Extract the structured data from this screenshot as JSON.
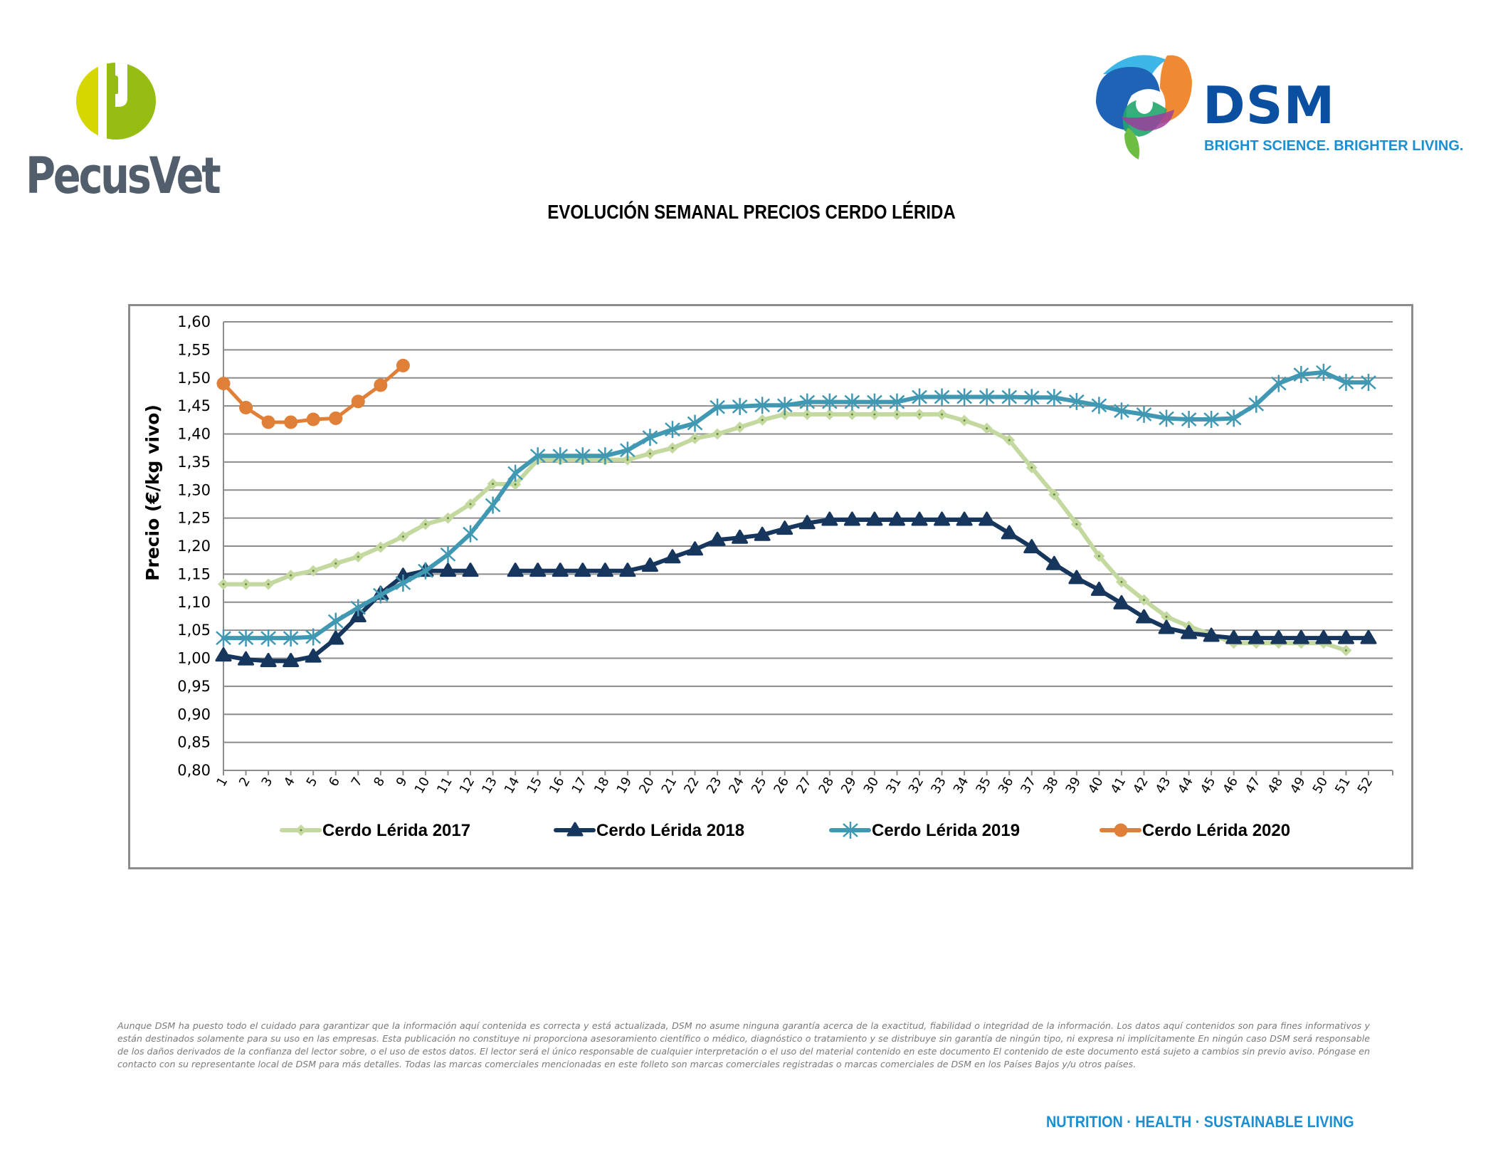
{
  "logos": {
    "left_brand": "PecusVet",
    "right_brand": "DSM",
    "right_tagline": "BRIGHT SCIENCE. BRIGHTER LIVING."
  },
  "title": "EVOLUCIÓN SEMANAL PRECIOS CERDO LÉRIDA",
  "colors": {
    "series_2017": "#c4d99f",
    "series_2018": "#17365d",
    "series_2019": "#4198b2",
    "series_2020": "#e07f38",
    "pecus_green_light": "#d4d800",
    "pecus_green": "#96be12",
    "pecus_gray": "#525e6c",
    "dsm_blue": "#0b4fa0",
    "dsm_light_blue": "#1b8fd1"
  },
  "chart_data": {
    "type": "line",
    "title": "EVOLUCIÓN SEMANAL PRECIOS CERDO LÉRIDA",
    "xlabel": "",
    "ylabel": "Precio (€/kg vivo)",
    "ylim": [
      0.8,
      1.6
    ],
    "yticks": [
      "0,80",
      "0,85",
      "0,90",
      "0,95",
      "1,00",
      "1,05",
      "1,10",
      "1,15",
      "1,20",
      "1,25",
      "1,30",
      "1,35",
      "1,40",
      "1,45",
      "1,50",
      "1,55",
      "1,60"
    ],
    "x": [
      1,
      2,
      3,
      4,
      5,
      6,
      7,
      8,
      9,
      10,
      11,
      12,
      13,
      14,
      15,
      16,
      17,
      18,
      19,
      20,
      21,
      22,
      23,
      24,
      25,
      26,
      27,
      28,
      29,
      30,
      31,
      32,
      33,
      34,
      35,
      36,
      37,
      38,
      39,
      40,
      41,
      42,
      43,
      44,
      45,
      46,
      47,
      48,
      49,
      50,
      51,
      52
    ],
    "grid": "horizontal",
    "legend_position": "bottom",
    "series": [
      {
        "name": "Cerdo Lérida 2017",
        "marker": "diamond",
        "values": [
          1.132,
          1.132,
          1.132,
          1.148,
          1.156,
          1.169,
          1.181,
          1.198,
          1.217,
          1.239,
          1.25,
          1.275,
          1.311,
          1.31,
          1.354,
          1.354,
          1.354,
          1.354,
          1.354,
          1.365,
          1.375,
          1.392,
          1.4,
          1.412,
          1.425,
          1.435,
          1.435,
          1.435,
          1.435,
          1.435,
          1.435,
          1.435,
          1.435,
          1.424,
          1.41,
          1.389,
          1.34,
          1.292,
          1.239,
          1.182,
          1.136,
          1.104,
          1.074,
          1.057,
          1.042,
          1.027,
          1.027,
          1.027,
          1.027,
          1.027,
          1.014,
          null
        ]
      },
      {
        "name": "Cerdo Lérida 2018",
        "marker": "triangle",
        "values": [
          1.005,
          0.998,
          0.995,
          0.995,
          1.003,
          1.035,
          1.075,
          1.115,
          1.147,
          1.156,
          1.156,
          1.156,
          null,
          1.156,
          1.156,
          1.156,
          1.156,
          1.156,
          1.156,
          1.165,
          1.18,
          1.194,
          1.211,
          1.215,
          1.22,
          1.231,
          1.241,
          1.247,
          1.247,
          1.247,
          1.247,
          1.247,
          1.247,
          1.247,
          1.247,
          1.223,
          1.198,
          1.168,
          1.143,
          1.122,
          1.098,
          1.073,
          1.054,
          1.045,
          1.04,
          1.036,
          1.036,
          1.036,
          1.036,
          1.036,
          1.036,
          1.036
        ]
      },
      {
        "name": "Cerdo Lérida 2019",
        "marker": "star",
        "values": [
          1.036,
          1.036,
          1.036,
          1.036,
          1.038,
          1.066,
          1.09,
          1.113,
          1.134,
          1.156,
          1.185,
          1.222,
          1.273,
          1.33,
          1.361,
          1.361,
          1.361,
          1.361,
          1.371,
          1.394,
          1.408,
          1.419,
          1.448,
          1.449,
          1.451,
          1.451,
          1.457,
          1.457,
          1.457,
          1.457,
          1.457,
          1.466,
          1.466,
          1.466,
          1.466,
          1.466,
          1.465,
          1.465,
          1.458,
          1.451,
          1.441,
          1.435,
          1.428,
          1.426,
          1.426,
          1.428,
          1.453,
          1.49,
          1.506,
          1.51,
          1.492,
          1.492
        ]
      },
      {
        "name": "Cerdo Lérida 2020",
        "marker": "circle",
        "values": [
          1.49,
          1.447,
          1.421,
          1.421,
          1.426,
          1.428,
          1.458,
          1.487,
          1.522
        ]
      }
    ]
  },
  "disclaimer": "Aunque DSM ha puesto todo el cuidado para garantizar que la información aquí contenida es correcta y está actualizada, DSM no asume ninguna garantía acerca de la exactitud, fiabilidad o integridad de la información. Los datos aquí contenidos son para fines informativos y están destinados solamente para su uso en las empresas. Esta publicación no constituye ni proporciona asesoramiento científico o médico, diagnóstico o tratamiento y se distribuye sin garantía de ningún tipo, ni expresa ni implícitamente En ningún caso DSM será responsable de los daños derivados de la confianza del lector sobre, o el uso de estos datos. El lector será el único responsable de cualquier interpretación o el uso del material contenido en este documento El contenido de este documento está sujeto a cambios sin previo aviso. Póngase en contacto con su representante local de DSM para más detalles. Todas las marcas comerciales mencionadas en este folleto son marcas comerciales registradas o marcas comerciales de DSM en los Países Bajos y/u otros países.",
  "footer_tagline": "NUTRITION · HEALTH · SUSTAINABLE LIVING"
}
